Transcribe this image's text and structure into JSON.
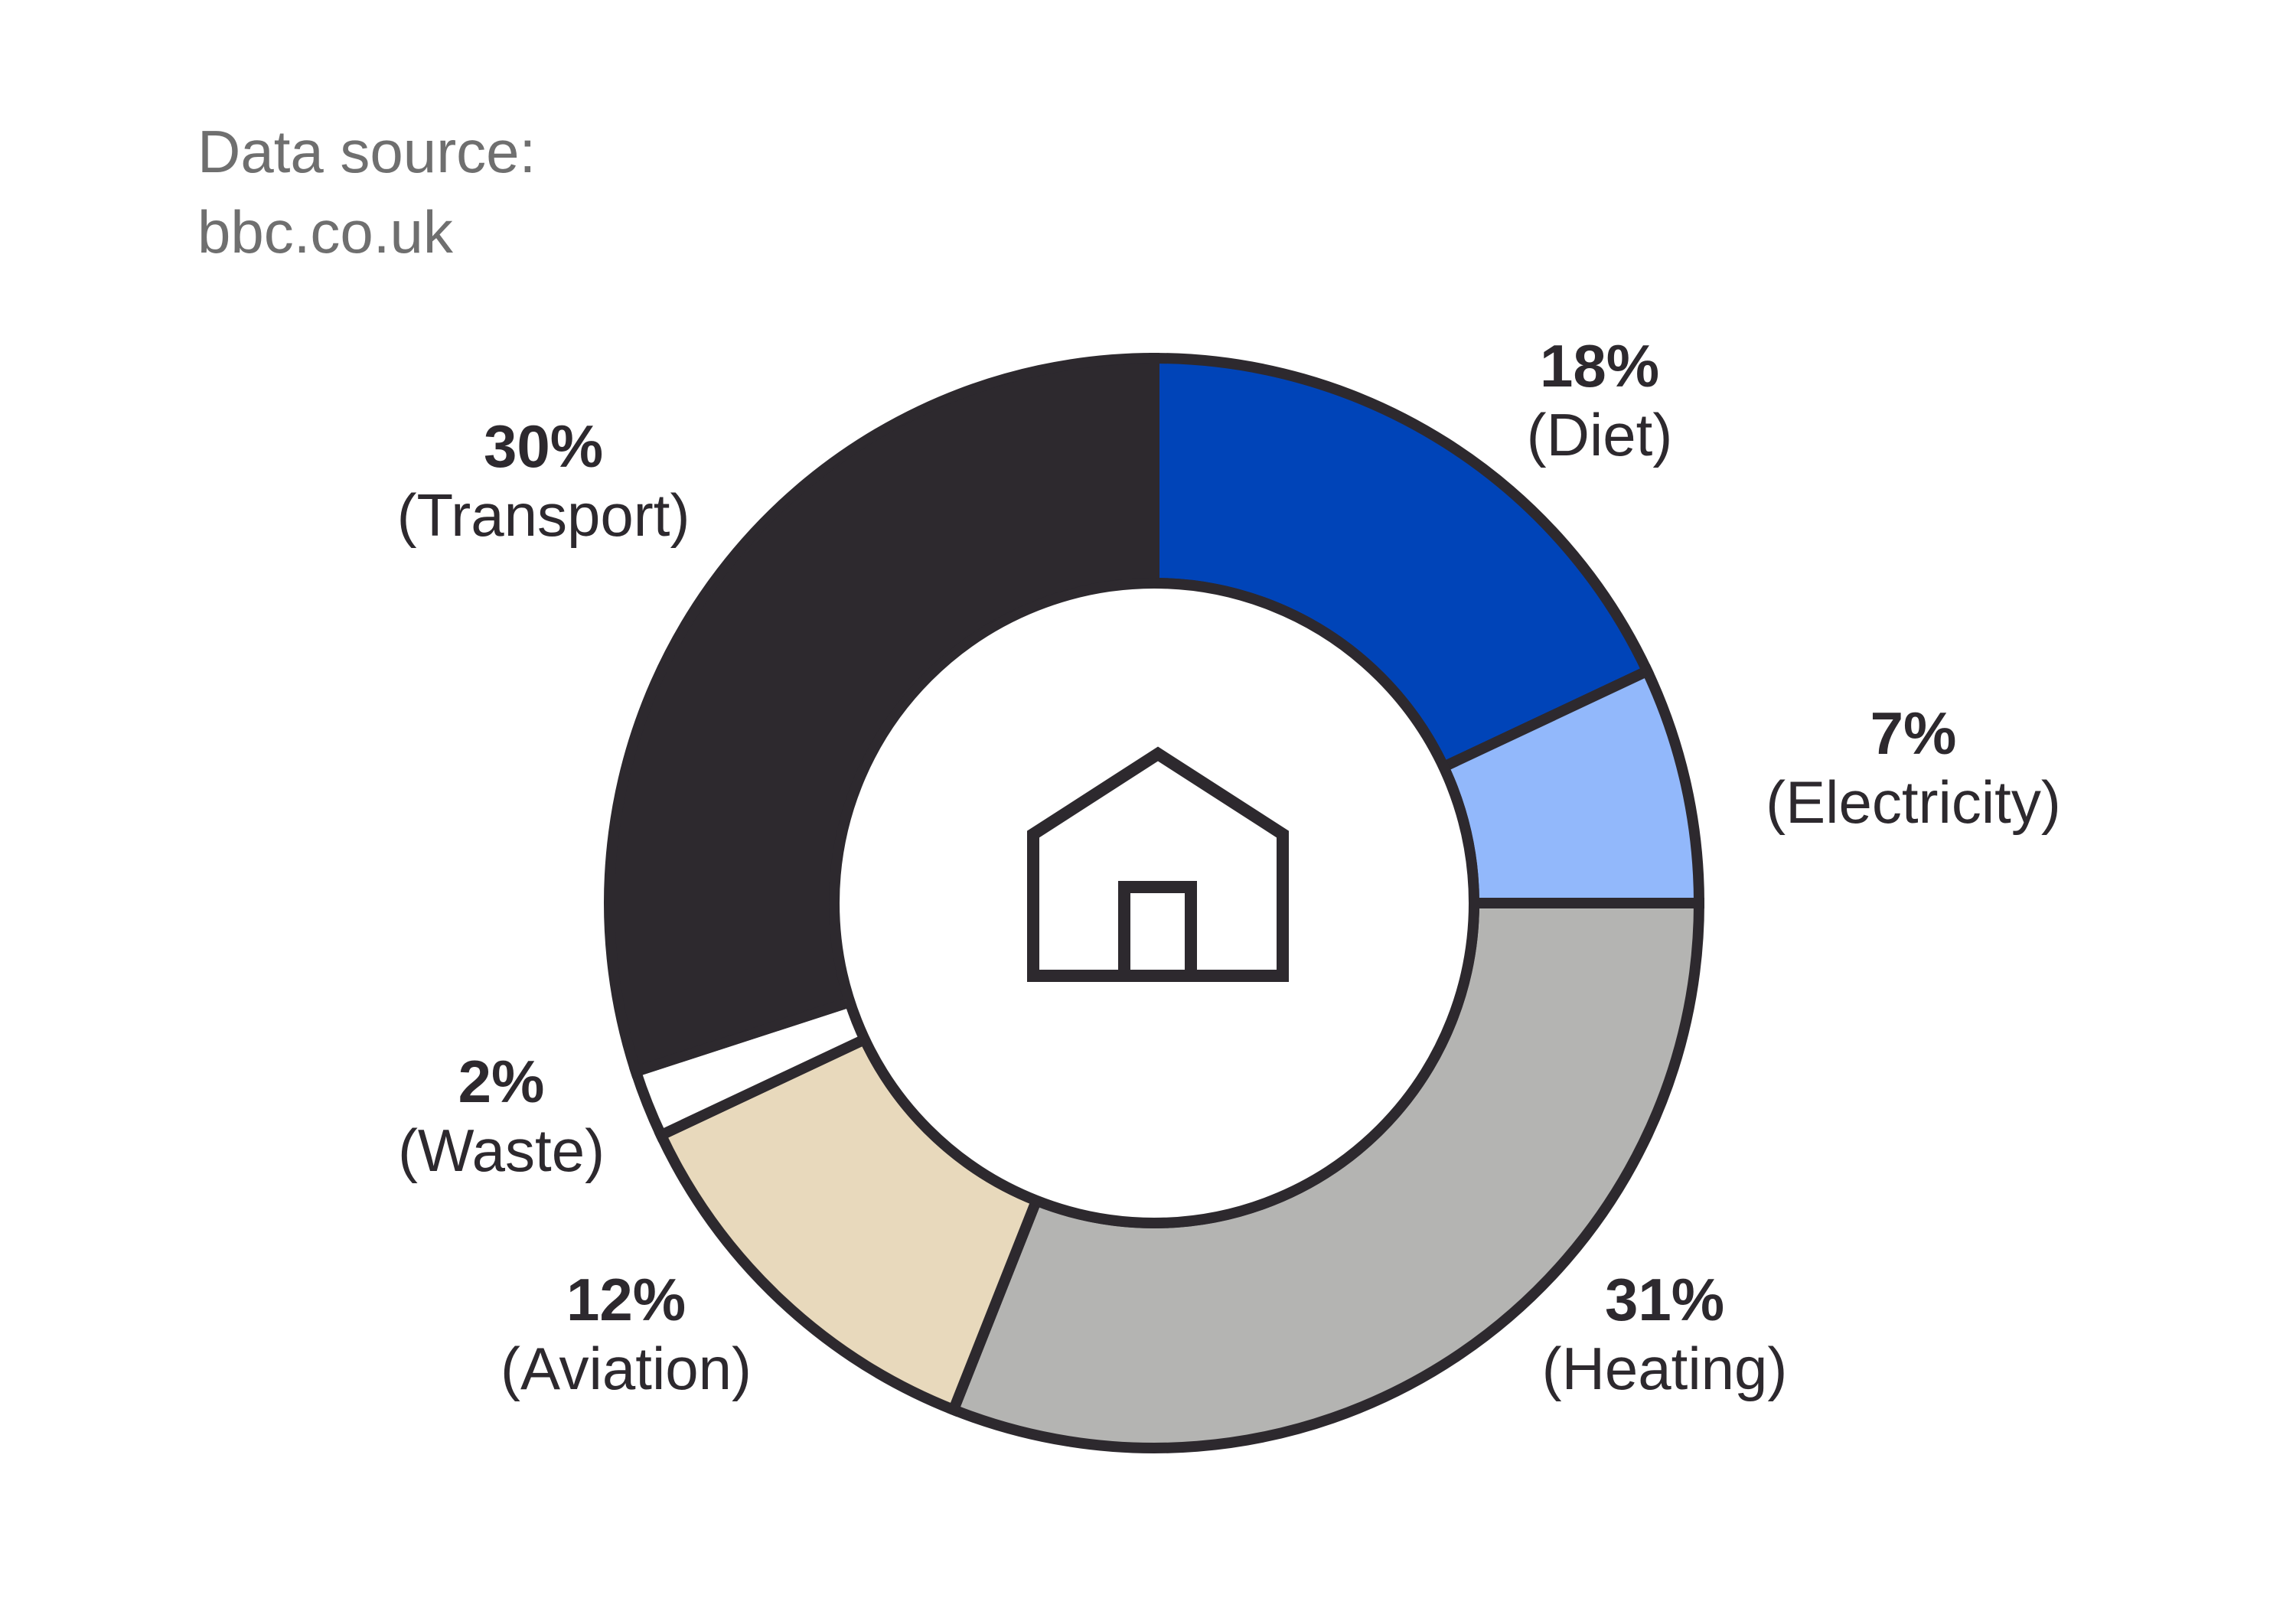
{
  "source": {
    "line1": "Data source:",
    "line2": "bbc.co.uk"
  },
  "center_icon": "house-icon",
  "chart_data": {
    "type": "pie",
    "variant": "donut",
    "title": "",
    "slices": [
      {
        "category": "Diet",
        "value": 18,
        "value_label": "18%",
        "category_label": "(Diet)",
        "color": "#0044b8"
      },
      {
        "category": "Electricity",
        "value": 7,
        "value_label": "7%",
        "category_label": "(Electricity)",
        "color": "#92b8fb"
      },
      {
        "category": "Heating",
        "value": 31,
        "value_label": "31%",
        "category_label": "(Heating)",
        "color": "#b4b4b2"
      },
      {
        "category": "Aviation",
        "value": 12,
        "value_label": "12%",
        "category_label": "(Aviation)",
        "color": "#e8d9bc"
      },
      {
        "category": "Waste",
        "value": 2,
        "value_label": "2%",
        "category_label": "(Waste)",
        "color": "#ffffff"
      },
      {
        "category": "Transport",
        "value": 30,
        "value_label": "30%",
        "category_label": "(Transport)",
        "color": "#2d292e"
      }
    ],
    "outline_color": "#2d292e",
    "legend": "none"
  }
}
